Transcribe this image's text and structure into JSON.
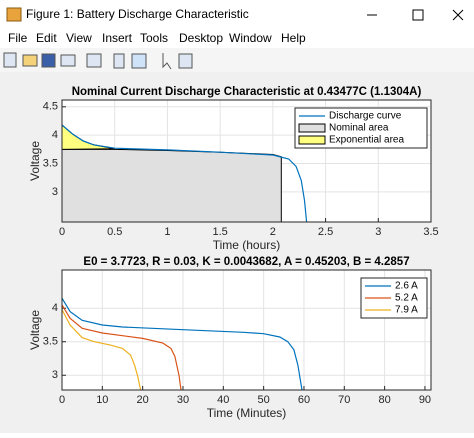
{
  "window": {
    "title": "Figure 1: Battery Discharge Characteristic",
    "menu": [
      "File",
      "Edit",
      "View",
      "Insert",
      "Tools",
      "Desktop",
      "Window",
      "Help"
    ]
  },
  "chart_data": [
    {
      "type": "line",
      "title": "Nominal Current Discharge Characteristic at 0.43477C (1.1304A)",
      "xlabel": "Time (hours)",
      "ylabel": "Voltage",
      "xlim": [
        0,
        3.5
      ],
      "xticks": [
        0,
        0.5,
        1,
        1.5,
        2,
        2.5,
        3,
        3.5
      ],
      "ylim": [
        2.47,
        4.62
      ],
      "yticks": [
        3,
        3.5,
        4,
        4.5
      ],
      "grid": true,
      "legend": "upper right",
      "series": [
        {
          "name": "Nominal area",
          "kind": "area",
          "color": "#e0e0e0",
          "x": [
            0,
            0,
            0.5,
            1,
            1.5,
            2,
            2.08,
            2.08
          ],
          "values": [
            2.47,
            3.75,
            3.75,
            3.73,
            3.7,
            3.66,
            3.62,
            2.47
          ]
        },
        {
          "name": "Exponential area",
          "kind": "area",
          "color": "#ffff80",
          "x": [
            0,
            0,
            0.1,
            0.2,
            0.3,
            0.5
          ],
          "values": [
            3.75,
            4.18,
            4.02,
            3.9,
            3.83,
            3.76
          ]
        },
        {
          "name": "Discharge curve",
          "kind": "line",
          "color": "#0072bd",
          "x": [
            0,
            0.1,
            0.2,
            0.3,
            0.5,
            1,
            1.5,
            2,
            2.15,
            2.22,
            2.27,
            2.3,
            2.32
          ],
          "values": [
            4.18,
            4.02,
            3.9,
            3.83,
            3.77,
            3.74,
            3.7,
            3.65,
            3.58,
            3.45,
            3.2,
            2.85,
            2.47
          ]
        }
      ]
    },
    {
      "type": "line",
      "title": "E0 = 3.7723, R = 0.03, K = 0.0043682, A = 0.45203, B = 4.2857",
      "xlabel": "Time (Minutes)",
      "ylabel": "Voltage",
      "xlim": [
        0,
        91.5
      ],
      "xticks": [
        0,
        10,
        20,
        30,
        40,
        50,
        60,
        70,
        80,
        90
      ],
      "ylim": [
        2.78,
        4.57
      ],
      "yticks": [
        3,
        3.5,
        4
      ],
      "grid": true,
      "legend": "upper right",
      "series": [
        {
          "name": "2.6 A",
          "kind": "line",
          "color": "#0072bd",
          "x": [
            0,
            2,
            5,
            10,
            15,
            30,
            45,
            50,
            54,
            56,
            57.5,
            58.5,
            59.5
          ],
          "values": [
            4.15,
            3.95,
            3.82,
            3.75,
            3.72,
            3.68,
            3.64,
            3.62,
            3.57,
            3.5,
            3.38,
            3.15,
            2.78
          ]
        },
        {
          "name": "5.2 A",
          "kind": "line",
          "color": "#d95319",
          "x": [
            0,
            2,
            5,
            10,
            15,
            20,
            25,
            27,
            28,
            29,
            29.5
          ],
          "values": [
            4.05,
            3.85,
            3.7,
            3.63,
            3.59,
            3.55,
            3.48,
            3.4,
            3.28,
            3.0,
            2.78
          ]
        },
        {
          "name": "7.9 A",
          "kind": "line",
          "color": "#edb120",
          "x": [
            0,
            2,
            5,
            8,
            12,
            15,
            17,
            18,
            18.8,
            19.5
          ],
          "values": [
            3.98,
            3.75,
            3.56,
            3.5,
            3.45,
            3.4,
            3.3,
            3.15,
            2.98,
            2.78
          ]
        }
      ]
    }
  ]
}
